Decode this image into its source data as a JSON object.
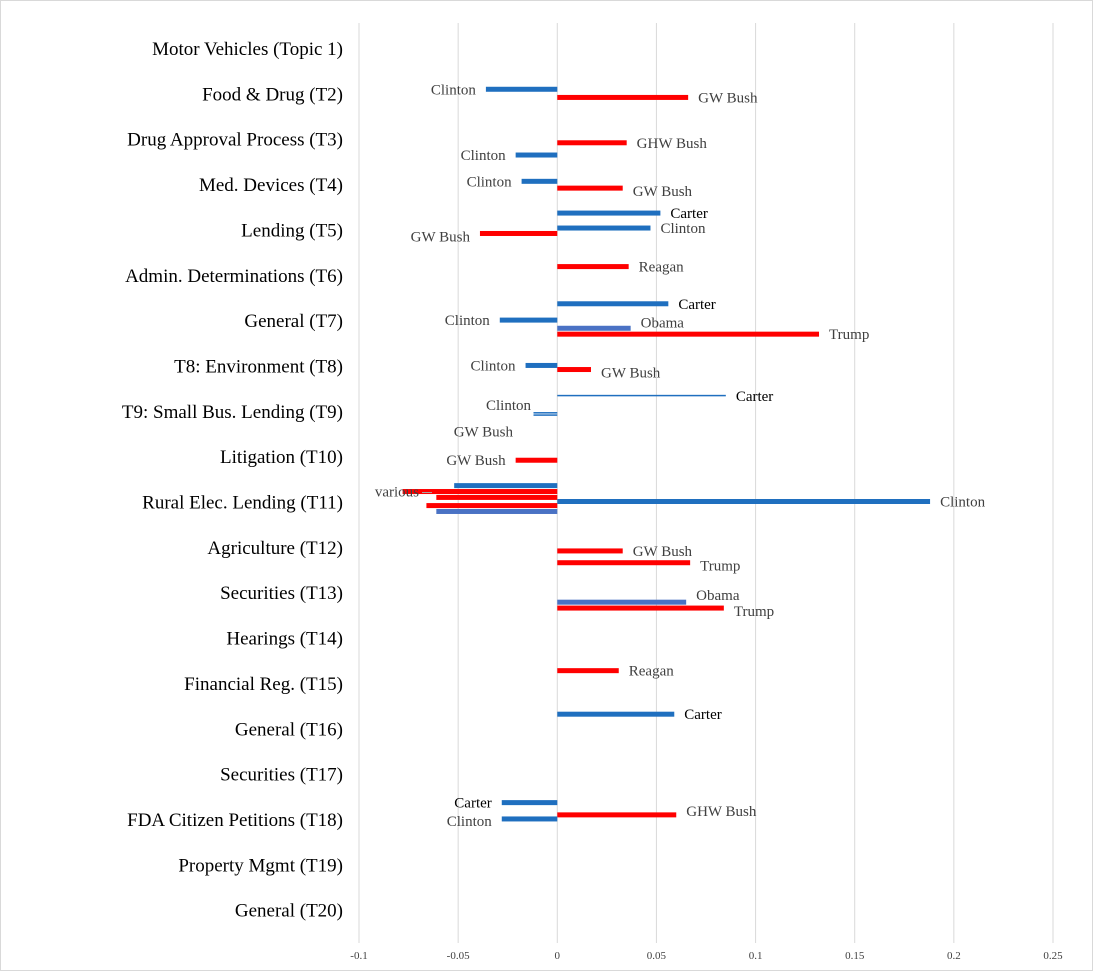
{
  "chart_data": {
    "type": "bar",
    "orientation": "horizontal",
    "grid": true,
    "xlim": [
      -0.1,
      0.25
    ],
    "x_ticks": [
      -0.1,
      -0.05,
      0,
      0.05,
      0.1,
      0.15,
      0.2,
      0.25
    ],
    "x_tick_labels": [
      "-0.1",
      "-0.05",
      "0",
      "0.05",
      "0.1",
      "0.15",
      "0.2",
      "0.25"
    ],
    "colors": {
      "blue": "#1f6fbf",
      "red": "#ff0000",
      "slate": "#4a72c4"
    },
    "topics": [
      "Motor Vehicles (Topic 1)",
      "Food & Drug (T2)",
      "Drug Approval Process (T3)",
      "Med. Devices (T4)",
      "Lending  (T5)",
      "Admin. Determinations (T6)",
      "General (T7)",
      "T8: Environment  (T8)",
      "T9: Small Bus. Lending (T9)",
      "Litigation (T10)",
      "Rural Elec. Lending (T11)",
      "Agriculture (T12)",
      "Securities (T13)",
      "Hearings (T14)",
      "Financial Reg.  (T15)",
      "General (T16)",
      "Securities (T17)",
      "FDA Citizen Petitions (T18)",
      "Property Mgmt (T19)",
      "General  (T20)"
    ],
    "bars": [
      {
        "topic": 2,
        "offset": -0.09,
        "value": -0.036,
        "color": "blue",
        "label": "Clinton",
        "label_side": "left",
        "label_dy": 0
      },
      {
        "topic": 2,
        "offset": 0.09,
        "value": 0.066,
        "color": "red",
        "label": "GW Bush",
        "label_side": "right",
        "label_dy": 0
      },
      {
        "topic": 3,
        "offset": 0.09,
        "value": 0.035,
        "color": "red",
        "label": "GHW Bush",
        "label_side": "right",
        "label_dy": 0
      },
      {
        "topic": 3,
        "offset": 0.36,
        "value": -0.021,
        "color": "blue",
        "label": "Clinton",
        "label_side": "left",
        "label_dy": 0
      },
      {
        "topic": 4,
        "offset": -0.06,
        "value": -0.018,
        "color": "blue",
        "label": "Clinton",
        "label_side": "left",
        "label_dy": 0
      },
      {
        "topic": 4,
        "offset": 0.09,
        "value": 0.033,
        "color": "red",
        "label": "GW Bush",
        "label_side": "right",
        "label_dy": 3
      },
      {
        "topic": 5,
        "offset": -0.36,
        "value": 0.052,
        "color": "blue",
        "label": "Carter",
        "label_side": "right",
        "label_dy": 0,
        "dark": true
      },
      {
        "topic": 5,
        "offset": -0.03,
        "value": 0.047,
        "color": "blue",
        "label": "Clinton",
        "label_side": "right",
        "label_dy": 0
      },
      {
        "topic": 5,
        "offset": 0.09,
        "value": -0.039,
        "color": "red",
        "label": "GW Bush",
        "label_side": "left",
        "label_dy": 3
      },
      {
        "topic": 6,
        "offset": -0.18,
        "value": 0.036,
        "color": "red",
        "label": "Reagan",
        "label_side": "right",
        "label_dy": 0
      },
      {
        "topic": 7,
        "offset": -0.36,
        "value": 0.056,
        "color": "blue",
        "label": "Carter",
        "label_side": "right",
        "label_dy": 0,
        "dark": true
      },
      {
        "topic": 7,
        "offset": 0,
        "value": -0.029,
        "color": "blue",
        "label": "Clinton",
        "label_side": "left",
        "label_dy": 0
      },
      {
        "topic": 7,
        "offset": 0.18,
        "value": 0.037,
        "color": "slate",
        "label": "Obama",
        "label_side": "right",
        "label_dy": -6
      },
      {
        "topic": 7,
        "offset": 0.31,
        "value": 0.132,
        "color": "red",
        "label": "Trump",
        "label_side": "right",
        "label_dy": 0
      },
      {
        "topic": 8,
        "offset": 0,
        "value": -0.016,
        "color": "blue",
        "label": "Clinton",
        "label_side": "left",
        "label_dy": 0
      },
      {
        "topic": 8,
        "offset": 0.09,
        "value": 0.017,
        "color": "red",
        "label": "GW Bush",
        "label_side": "right",
        "label_dy": 3
      },
      {
        "topic": 9,
        "offset": -0.33,
        "value": 0.085,
        "color": "blue",
        "label": "Carter",
        "label_side": "right",
        "label_dy": 0,
        "dark": true
      },
      {
        "topic": 9,
        "offset": 0.05,
        "value": -0.012,
        "color": "blue",
        "label": "Clinton",
        "label_side": "left",
        "label_dy": -8,
        "label_x": 530
      },
      {
        "topic": 9,
        "offset": 0.1,
        "value": -0.012,
        "color": "blue",
        "label": "GW Bush",
        "label_side": "left",
        "label_dy": 16,
        "label_x": 512
      },
      {
        "topic": 10,
        "offset": 0.09,
        "value": -0.021,
        "color": "red",
        "label": "GW Bush",
        "label_side": "left",
        "label_dy": 0
      },
      {
        "topic": 11,
        "offset": -0.35,
        "value": -0.052,
        "color": "blue",
        "label": "",
        "label_side": "none",
        "label_dy": 0
      },
      {
        "topic": 11,
        "offset": -0.22,
        "value": -0.078,
        "color": "red",
        "label": "various",
        "label_side": "left",
        "label_dy": 0,
        "label_x": 418
      },
      {
        "topic": 11,
        "offset": -0.09,
        "value": -0.061,
        "color": "red",
        "label": "",
        "label_side": "none",
        "label_dy": 0
      },
      {
        "topic": 11,
        "offset": 0,
        "value": 0.188,
        "color": "blue",
        "label": "Clinton",
        "label_side": "right",
        "label_dy": 0
      },
      {
        "topic": 11,
        "offset": 0.09,
        "value": -0.066,
        "color": "red",
        "label": "",
        "label_side": "none",
        "label_dy": 0
      },
      {
        "topic": 11,
        "offset": 0.22,
        "value": -0.061,
        "color": "slate",
        "label": "",
        "label_side": "none",
        "label_dy": 0
      },
      {
        "topic": 12,
        "offset": 0.09,
        "value": 0.033,
        "color": "red",
        "label": "GW Bush",
        "label_side": "right",
        "label_dy": 0
      },
      {
        "topic": 12,
        "offset": 0.35,
        "value": 0.067,
        "color": "red",
        "label": "Trump",
        "label_side": "right",
        "label_dy": 3
      },
      {
        "topic": 13,
        "offset": 0.22,
        "value": 0.065,
        "color": "slate",
        "label": "Obama",
        "label_side": "right",
        "label_dy": -7
      },
      {
        "topic": 13,
        "offset": 0.35,
        "value": 0.084,
        "color": "red",
        "label": "Trump",
        "label_side": "right",
        "label_dy": 3
      },
      {
        "topic": 15,
        "offset": -0.27,
        "value": 0.031,
        "color": "red",
        "label": "Reagan",
        "label_side": "right",
        "label_dy": 0
      },
      {
        "topic": 16,
        "offset": -0.31,
        "value": 0.059,
        "color": "blue",
        "label": "Carter",
        "label_side": "right",
        "label_dy": 0,
        "dark": true
      },
      {
        "topic": 18,
        "offset": -0.36,
        "value": -0.028,
        "color": "blue",
        "label": "Carter",
        "label_side": "left",
        "label_dy": 0,
        "dark": true
      },
      {
        "topic": 18,
        "offset": -0.09,
        "value": 0.06,
        "color": "red",
        "label": "GHW Bush",
        "label_side": "right",
        "label_dy": -4
      },
      {
        "topic": 18,
        "offset": 0,
        "value": -0.028,
        "color": "blue",
        "label": "Clinton",
        "label_side": "left",
        "label_dy": 2
      }
    ]
  }
}
